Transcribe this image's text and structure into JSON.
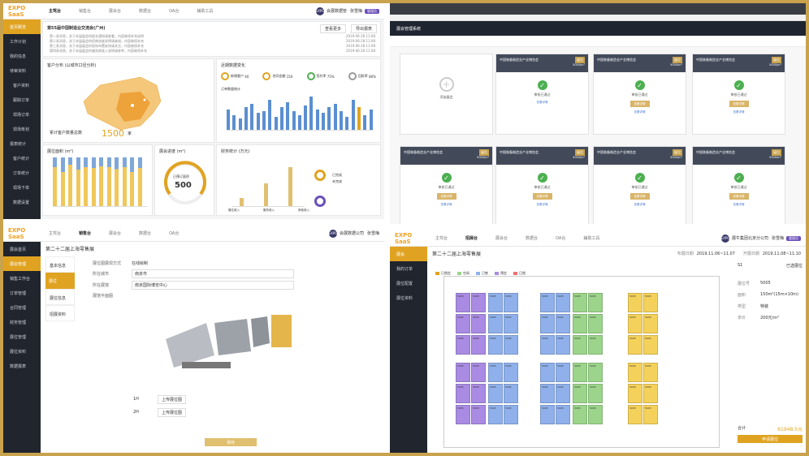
{
  "panel1": {
    "logo": "EXPO SaaS",
    "nav": [
      "主驾台",
      "销售台",
      "展会台",
      "数据台",
      "OA台",
      "辅助工具"
    ],
    "user": {
      "avatar": "EXPO",
      "org": "会展数据管",
      "name": "张雪梅",
      "badge": "管理员"
    },
    "sidebar": [
      "首页概览",
      "工作计划",
      "我的信息",
      "待审资料",
      "客户资料",
      "跟踪订单",
      "现场订单",
      "现场筹划",
      "报表统计",
      "客户统计",
      "订单统计",
      "现场下单",
      "数据设置"
    ],
    "notice": {
      "title": "第55届中国制造业交流会(广州)",
      "btn_a": "查看更多",
      "btn_b": "导出报表"
    },
    "notice_lines": [
      {
        "text": "第一条消息，关于本届展会的报名通知请查看，内容继续补充说明",
        "date": "2019-06-28 11:08"
      },
      {
        "text": "第二条消息，关于本届展会的招商进度说明请查阅，内容继续补充",
        "date": "2019-06-28 11:08"
      },
      {
        "text": "第三条消息，关于本届展会的现场布置安排请关注，内容继续补充",
        "date": "2019-06-28 11:08"
      },
      {
        "text": "第四条消息，关于本届展会的服务商准入说明请参考，内容继续补充",
        "date": "2019-06-28 11:08"
      }
    ],
    "map_card": {
      "title": "客户分布 (以城市口径分析)",
      "label": "累计客户数量总数",
      "value": "1500",
      "unit": "家"
    },
    "trend_card": {
      "title": "近期数据变化",
      "stats": [
        {
          "label": "新增客户",
          "value": "40"
        },
        {
          "label": "合同金额",
          "value": "150"
        },
        {
          "label": "签约率",
          "value": "75%"
        },
        {
          "label": "回款率",
          "value": "80%"
        }
      ],
      "subtitle": "订单数量统计"
    },
    "area_card": {
      "title": "展位面积 (m²)"
    },
    "gauge_card": {
      "title": "展会进度 (m²)",
      "value": "500",
      "label": "已预订面积"
    },
    "finance_card": {
      "title": "财务统计 (万元)",
      "items": [
        "展位收入",
        "服务收入",
        "其他收入"
      ],
      "legend_a": "已完成",
      "legend_b": "未完成"
    }
  },
  "panel2": {
    "topbar_label": "展会管理系统",
    "add_label": "添加展会",
    "cards": [
      {
        "title": "中国装备制造业产业博览会",
        "tag": "展位",
        "price": "5000/m²",
        "status": "审核已通过",
        "btn": "",
        "link": "查看详情"
      },
      {
        "title": "中国装备制造业产业博览会",
        "tag": "展位",
        "price": "5000/m²",
        "status": "审核已通过",
        "btn": "查看详情",
        "link": "查看详情"
      },
      {
        "title": "中国装备制造业产业博览会",
        "tag": "展位",
        "price": "5000/m²",
        "status": "审核已通过",
        "btn": "查看详情",
        "link": "查看详情"
      },
      {
        "title": "中国装备制造业产业博览会",
        "tag": "展位",
        "price": "5000/m²",
        "status": "审核已通过",
        "btn": "查看详情",
        "link": "查看详情"
      },
      {
        "title": "中国装备制造业产业博览会",
        "tag": "展位",
        "price": "5000/m²",
        "status": "审核已通过",
        "btn": "查看详情",
        "link": "查看详情"
      },
      {
        "title": "中国装备制造业产业博览会",
        "tag": "展位",
        "price": "5000/m²",
        "status": "审核已通过",
        "btn": "查看详情",
        "link": "查看详情"
      },
      {
        "title": "中国装备制造业产业博览会",
        "tag": "展位",
        "price": "5000/m²",
        "status": "审核已通过",
        "btn": "查看详情",
        "link": "查看详情"
      }
    ]
  },
  "panel3": {
    "logo": "EXPO SaaS",
    "nav": [
      "主驾台",
      "销售台",
      "展会台",
      "数据台",
      "OA台"
    ],
    "user": {
      "avatar": "EXPO",
      "org": "会展数据公司",
      "name": "张雪梅"
    },
    "sidebar": [
      "展会首页",
      "展会管理",
      "销售工作台",
      "订单管理",
      "合同管理",
      "财务管理",
      "展位管理",
      "展位资料",
      "数据报表"
    ],
    "page_title": "第二十二届上海零售展",
    "tabs": [
      "基本信息",
      "展位",
      "展位信息",
      "招展资料"
    ],
    "form": [
      {
        "label": "展位图展现方式",
        "value": "在线绘制"
      },
      {
        "label": "所在城市",
        "value": "南京市"
      },
      {
        "label": "所在展馆",
        "value": "南京国际博览中心"
      },
      {
        "label": "展馆平面图",
        "value": ""
      }
    ],
    "floors": [
      {
        "label": "1H",
        "action": "上传展位图"
      },
      {
        "label": "2H",
        "action": "上传展位图"
      }
    ],
    "save": "保存"
  },
  "panel4": {
    "logo": "EXPO SaaS",
    "nav": [
      "主驾台",
      "招展台",
      "展会台",
      "数据台",
      "OA台",
      "辅助工具"
    ],
    "user": {
      "avatar": "EXPO",
      "org": "展牛集团北京分公司",
      "name": "张雪梅",
      "badge": "管理员"
    },
    "sidebar": [
      "展会",
      "我的订单",
      "展位配置",
      "展位资料"
    ],
    "page_title": "第二十二届上海零售展",
    "period_label": "布展日期",
    "period": "2019.11.06~11.07",
    "open_label": "开展日期",
    "open": "2019.11.08~11.10",
    "legend": [
      "已锁定",
      "空闲",
      "已售",
      "预定",
      "已锁"
    ],
    "detail": {
      "hall": "S1",
      "select": "已选展位",
      "rows": [
        {
          "k": "展位号",
          "v": "5005"
        },
        {
          "k": "面积",
          "v": "150m²(15m×10m)"
        },
        {
          "k": "类型",
          "v": "特装"
        },
        {
          "k": "单价",
          "v": "200元/m²"
        }
      ],
      "total_label": "合计",
      "total": "61948.5元",
      "confirm": "申请展位"
    }
  },
  "colors": {
    "gold": "#e0a321",
    "purple": "#a98be3",
    "blue": "#8fb0ea",
    "green": "#9bd48a",
    "yellow": "#f4d15a"
  }
}
